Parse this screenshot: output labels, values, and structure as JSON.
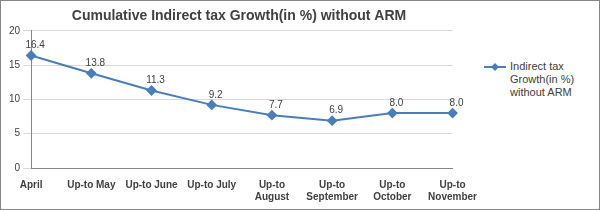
{
  "chart_data": {
    "type": "line",
    "title": "Cumulative Indirect tax Growth(in %) without ARM",
    "categories": [
      "April",
      "Up-to May",
      "Up-to June",
      "Up-to July",
      "Up-to August",
      "Up-to September",
      "Up-to October",
      "Up-to November"
    ],
    "series": [
      {
        "name": "Indirect tax Growth(in %) without ARM",
        "color": "#4a7ebb",
        "marker": "diamond",
        "line_style": "solid",
        "values": [
          16.4,
          13.8,
          11.3,
          9.2,
          7.7,
          6.9,
          8.0,
          8.0
        ],
        "value_labels": [
          "16.4",
          "13.8",
          "11.3",
          "9.2",
          "7.7",
          "6.9",
          "8.0",
          "8.0"
        ]
      }
    ],
    "ylim": [
      0,
      20
    ],
    "yticks": [
      0,
      5,
      10,
      15,
      20
    ],
    "grid": true,
    "legend": "right",
    "data_labels": true
  }
}
